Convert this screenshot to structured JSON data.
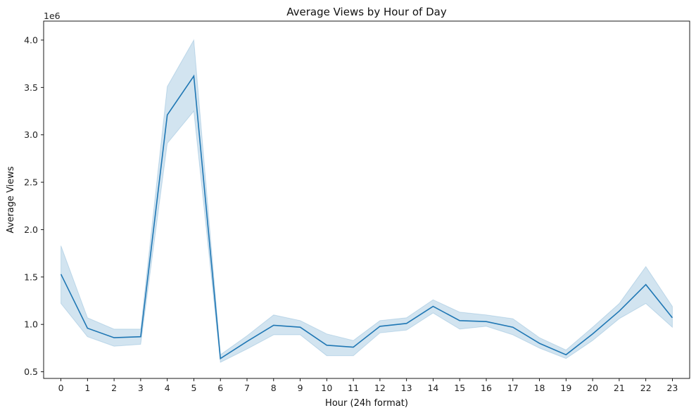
{
  "chart_data": {
    "type": "line",
    "title": "Average Views by Hour of Day",
    "xlabel": "Hour (24h format)",
    "ylabel": "Average Views",
    "y_exponent_label": "1e6",
    "x_ticks": [
      0,
      1,
      2,
      3,
      4,
      5,
      6,
      7,
      8,
      9,
      10,
      11,
      12,
      13,
      14,
      15,
      16,
      17,
      18,
      19,
      20,
      21,
      22,
      23
    ],
    "y_ticks": [
      0.5,
      1.0,
      1.5,
      2.0,
      2.5,
      3.0,
      3.5,
      4.0
    ],
    "y_tick_labels": [
      "0.5",
      "1.0",
      "1.5",
      "2.0",
      "2.5",
      "3.0",
      "3.5",
      "4.0"
    ],
    "xlim": [
      -0.65,
      23.65
    ],
    "ylim": [
      0.43,
      4.2
    ],
    "y_unit_scale": 1000000,
    "grid": false,
    "line_color": "#1f77b4",
    "band_color": "#1f77b4",
    "band_opacity": 0.2,
    "series": [
      {
        "x": [
          0,
          1,
          2,
          3,
          4,
          5,
          6,
          7,
          8,
          9,
          10,
          11,
          12,
          13,
          14,
          15,
          16,
          17,
          18,
          19,
          20,
          21,
          22,
          23
        ],
        "values": [
          1.53,
          0.96,
          0.86,
          0.87,
          3.21,
          3.62,
          0.64,
          0.82,
          0.99,
          0.97,
          0.78,
          0.76,
          0.98,
          1.01,
          1.19,
          1.04,
          1.03,
          0.97,
          0.8,
          0.68,
          0.9,
          1.14,
          1.42,
          1.07
        ],
        "ci_lower": [
          1.22,
          0.87,
          0.77,
          0.79,
          2.91,
          3.25,
          0.6,
          0.74,
          0.89,
          0.89,
          0.67,
          0.67,
          0.91,
          0.94,
          1.12,
          0.95,
          0.98,
          0.89,
          0.75,
          0.64,
          0.83,
          1.06,
          1.22,
          0.97
        ],
        "ci_upper": [
          1.83,
          1.07,
          0.95,
          0.95,
          3.51,
          4.0,
          0.68,
          0.88,
          1.1,
          1.04,
          0.9,
          0.83,
          1.04,
          1.07,
          1.26,
          1.13,
          1.1,
          1.06,
          0.86,
          0.73,
          0.97,
          1.22,
          1.61,
          1.19
        ]
      }
    ]
  }
}
